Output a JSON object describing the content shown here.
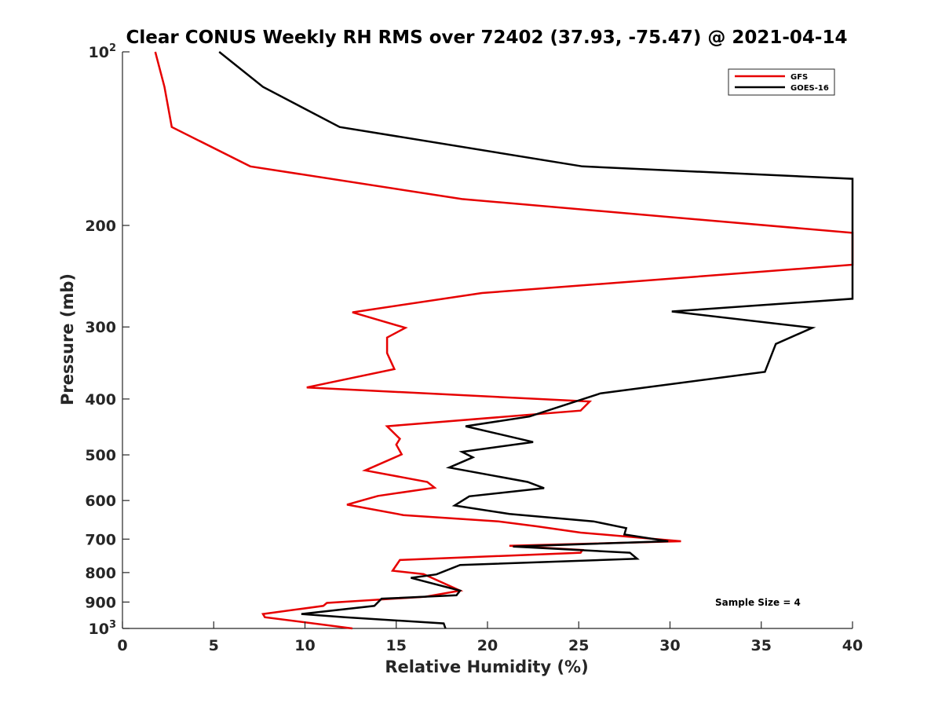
{
  "chart_data": {
    "type": "line",
    "title": "Clear CONUS Weekly RH RMS over 72402 (37.93, -75.47) @ 2021-04-14",
    "xlabel": "Relative Humidity (%)",
    "ylabel": "Pressure (mb)",
    "xlim": [
      0,
      40
    ],
    "ylim": [
      100,
      1000
    ],
    "yscale": "log",
    "yreversed": true,
    "xticks": [
      0,
      5,
      10,
      15,
      20,
      25,
      30,
      35,
      40
    ],
    "xtick_labels": [
      "0",
      "5",
      "10",
      "15",
      "20",
      "25",
      "30",
      "35",
      "40"
    ],
    "yticks": [
      100,
      200,
      300,
      400,
      500,
      600,
      700,
      800,
      900,
      1000
    ],
    "ytick_labels": [
      {
        "base": "10",
        "exp": "2"
      },
      {
        "base": "200",
        "exp": ""
      },
      {
        "base": "300",
        "exp": ""
      },
      {
        "base": "400",
        "exp": ""
      },
      {
        "base": "500",
        "exp": ""
      },
      {
        "base": "600",
        "exp": ""
      },
      {
        "base": "700",
        "exp": ""
      },
      {
        "base": "800",
        "exp": ""
      },
      {
        "base": "900",
        "exp": ""
      },
      {
        "base": "10",
        "exp": "3"
      }
    ],
    "legend_position": "top-right",
    "grid": false,
    "annotation": "Sample Size = 4",
    "series": [
      {
        "name": "GFS",
        "color": "#e60000",
        "points": [
          [
            1.8,
            100
          ],
          [
            2.3,
            115
          ],
          [
            2.7,
            135
          ],
          [
            7.0,
            158
          ],
          [
            18.6,
            180
          ],
          [
            40.0,
            206
          ],
          [
            40.0,
            234
          ],
          [
            19.7,
            262
          ],
          [
            12.6,
            283
          ],
          [
            15.5,
            301
          ],
          [
            14.5,
            313
          ],
          [
            14.5,
            333
          ],
          [
            14.9,
            355
          ],
          [
            10.1,
            382
          ],
          [
            25.6,
            404
          ],
          [
            25.1,
            419
          ],
          [
            14.5,
            446
          ],
          [
            15.2,
            469
          ],
          [
            15.0,
            480
          ],
          [
            15.3,
            499
          ],
          [
            13.3,
            532
          ],
          [
            16.7,
            557
          ],
          [
            17.1,
            570
          ],
          [
            14.0,
            589
          ],
          [
            12.3,
            610
          ],
          [
            15.4,
            636
          ],
          [
            20.6,
            652
          ],
          [
            22.7,
            665
          ],
          [
            25.1,
            682
          ],
          [
            30.6,
            706
          ],
          [
            21.2,
            719
          ],
          [
            25.2,
            731
          ],
          [
            25.1,
            739
          ],
          [
            15.2,
            761
          ],
          [
            14.8,
            794
          ],
          [
            16.5,
            805
          ],
          [
            18.5,
            860
          ],
          [
            16.6,
            881
          ],
          [
            11.2,
            903
          ],
          [
            11.0,
            914
          ],
          [
            7.7,
            944
          ],
          [
            7.8,
            956
          ],
          [
            12.6,
            1000
          ]
        ]
      },
      {
        "name": "GOES-16",
        "color": "#000000",
        "points": [
          [
            5.3,
            100
          ],
          [
            7.7,
            115
          ],
          [
            11.9,
            135
          ],
          [
            25.2,
            158
          ],
          [
            40.0,
            166
          ],
          [
            40.0,
            268
          ],
          [
            30.1,
            282
          ],
          [
            37.8,
            301
          ],
          [
            35.8,
            321
          ],
          [
            35.2,
            359
          ],
          [
            26.2,
            391
          ],
          [
            22.3,
            429
          ],
          [
            18.8,
            446
          ],
          [
            22.5,
            475
          ],
          [
            18.6,
            494
          ],
          [
            19.2,
            505
          ],
          [
            17.9,
            526
          ],
          [
            22.2,
            557
          ],
          [
            23.1,
            571
          ],
          [
            19.0,
            590
          ],
          [
            18.2,
            612
          ],
          [
            21.2,
            633
          ],
          [
            25.8,
            652
          ],
          [
            27.6,
            670
          ],
          [
            27.5,
            687
          ],
          [
            29.9,
            706
          ],
          [
            21.4,
            721
          ],
          [
            27.8,
            739
          ],
          [
            28.2,
            757
          ],
          [
            18.5,
            776
          ],
          [
            17.2,
            806
          ],
          [
            15.8,
            817
          ],
          [
            18.5,
            860
          ],
          [
            18.3,
            876
          ],
          [
            14.2,
            888
          ],
          [
            13.8,
            914
          ],
          [
            9.8,
            944
          ],
          [
            12.2,
            956
          ],
          [
            17.6,
            980
          ],
          [
            17.7,
            1000
          ]
        ]
      }
    ]
  }
}
